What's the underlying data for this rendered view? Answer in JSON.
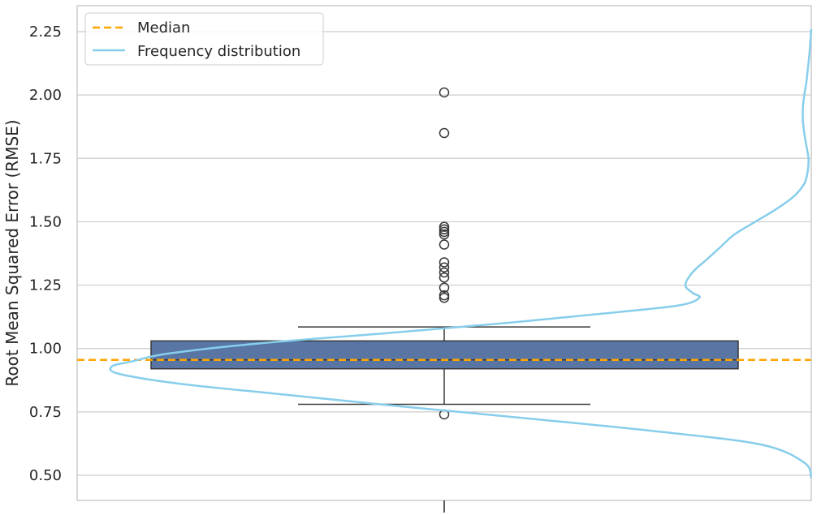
{
  "chart_data": {
    "type": "box",
    "ylabel": "Root Mean Squared Error (RMSE)",
    "xlabel": "",
    "ylim": [
      0.4,
      2.35
    ],
    "yticks": [
      0.5,
      0.75,
      1.0,
      1.25,
      1.5,
      1.75,
      2.0,
      2.25
    ],
    "ytick_labels": [
      "0.50",
      "0.75",
      "1.00",
      "1.25",
      "1.50",
      "1.75",
      "2.00",
      "2.25"
    ],
    "grid": true,
    "legend_position": "top-left",
    "box": {
      "q1": 0.92,
      "median": 0.955,
      "q3": 1.03,
      "whisker_low": 0.78,
      "whisker_high": 1.085,
      "outliers": [
        0.74,
        1.2,
        1.21,
        1.24,
        1.28,
        1.3,
        1.32,
        1.34,
        1.41,
        1.45,
        1.46,
        1.47,
        1.48,
        1.85,
        2.01
      ],
      "color": "#5875a4"
    },
    "median_line": {
      "value": 0.955,
      "color": "#ffa500",
      "legend": "Median"
    },
    "frequency_distribution": {
      "legend": "Frequency distribution",
      "color": "#87ceeb",
      "y": [
        0.49,
        0.55,
        0.62,
        0.67,
        0.72,
        0.77,
        0.82,
        0.86,
        0.9,
        0.93,
        0.95,
        0.98,
        1.02,
        1.06,
        1.1,
        1.14,
        1.17,
        1.2,
        1.22,
        1.25,
        1.3,
        1.35,
        1.4,
        1.45,
        1.5,
        1.55,
        1.6,
        1.65,
        1.7,
        1.75,
        1.8,
        1.85,
        1.9,
        1.95,
        2.0,
        2.05,
        2.1,
        2.15,
        2.2,
        2.26
      ],
      "density": [
        0.0,
        0.01,
        0.07,
        0.21,
        0.39,
        0.58,
        0.76,
        0.9,
        0.99,
        1.0,
        0.97,
        0.92,
        0.79,
        0.61,
        0.44,
        0.29,
        0.19,
        0.16,
        0.17,
        0.18,
        0.17,
        0.15,
        0.13,
        0.11,
        0.08,
        0.05,
        0.025,
        0.01,
        0.005,
        0.004,
        0.007,
        0.01,
        0.012,
        0.012,
        0.01,
        0.007,
        0.005,
        0.003,
        0.0015,
        0.0
      ]
    }
  }
}
